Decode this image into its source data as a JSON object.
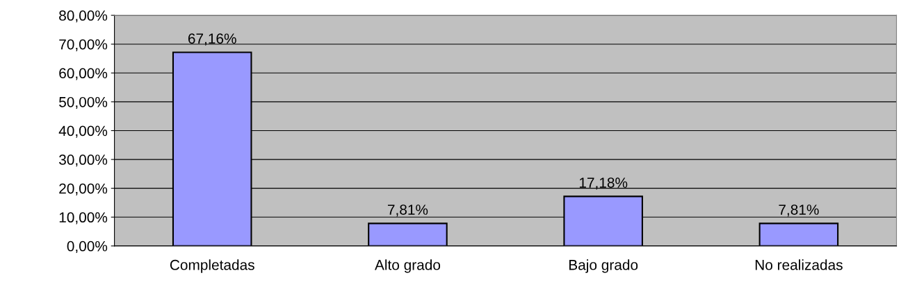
{
  "chart_data": {
    "type": "bar",
    "categories": [
      "Completadas",
      "Alto grado",
      "Bajo grado",
      "No realizadas"
    ],
    "values": [
      67.16,
      7.81,
      17.18,
      7.81
    ],
    "value_labels": [
      "67,16%",
      "7,81%",
      "17,18%",
      "7,81%"
    ],
    "color": "#9999ff",
    "ylim": [
      0,
      80
    ],
    "yticks": [
      {
        "value": 0,
        "label": "0,00%"
      },
      {
        "value": 10,
        "label": "10,00%"
      },
      {
        "value": 20,
        "label": "20,00%"
      },
      {
        "value": 30,
        "label": "30,00%"
      },
      {
        "value": 40,
        "label": "40,00%"
      },
      {
        "value": 50,
        "label": "50,00%"
      },
      {
        "value": 60,
        "label": "60,00%"
      },
      {
        "value": 70,
        "label": "70,00%"
      },
      {
        "value": 80,
        "label": "80,00%"
      }
    ],
    "grid": "y",
    "legend": false
  }
}
